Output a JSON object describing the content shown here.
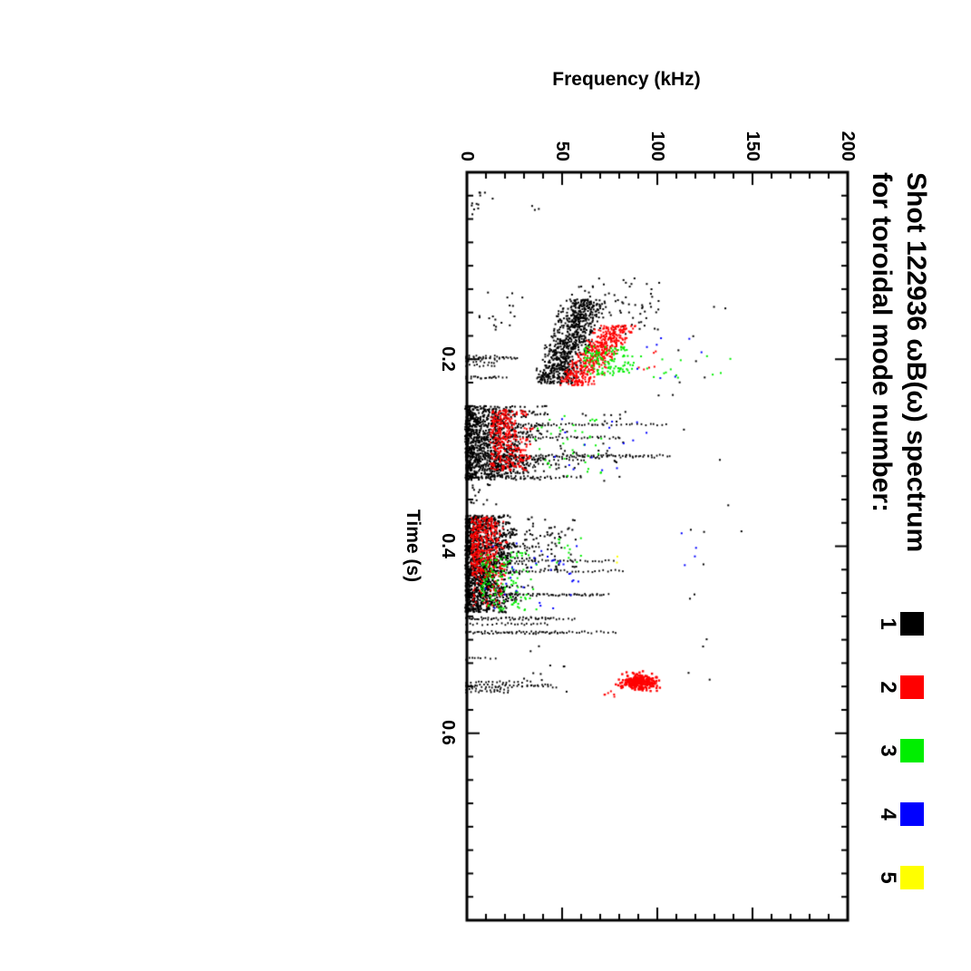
{
  "page": {
    "background": "#ffffff"
  },
  "chart": {
    "title_line1": "Shot 122936 ωB(ω) spectrum",
    "title_line2": "for toroidal mode number:",
    "x_axis": {
      "label": "Time (s)",
      "ticks": [
        "0.2",
        "0.4",
        "0.6"
      ]
    },
    "y_axis": {
      "label": "Frequency (kHz)",
      "ticks": [
        "0",
        "50",
        "100",
        "150",
        "200"
      ]
    },
    "legend": [
      {
        "label": "1",
        "color": "#000000"
      },
      {
        "label": "2",
        "color": "#ff0000"
      },
      {
        "label": "3",
        "color": "#00ee00"
      },
      {
        "label": "4",
        "color": "#0000ff"
      },
      {
        "label": "5",
        "color": "#ffff00"
      }
    ]
  },
  "chart_data": {
    "type": "scatter",
    "title": "Shot 122936 ωB(ω) spectrum for toroidal mode number:",
    "xlabel": "Time (s)",
    "ylabel": "Frequency (kHz)",
    "xlim": [
      0,
      0.8
    ],
    "ylim": [
      0,
      200
    ],
    "x_major": 0.2,
    "x_minor": 0.025,
    "y_major": 50,
    "y_minor": 10,
    "x_tick_labels": [
      "0.2",
      "0.4",
      "0.6"
    ],
    "y_tick_labels": [
      "0",
      "50",
      "100",
      "150",
      "200"
    ],
    "grid": false,
    "legend_position": "top-right of title, color swatches with mode numbers 1-5 beneath",
    "orientation": "landscape plot rotated 90° clockwise on the page (time axis runs downward, frequency axis runs rightward)",
    "series": [
      {
        "name": "toroidal mode n=1",
        "legend_label": "1",
        "color": "#000000",
        "clusters": [
          {
            "style": "dots",
            "t": [
              0.02,
              0.045
            ],
            "f": [
              0,
              14
            ],
            "n": 12
          },
          {
            "style": "dots",
            "t": [
              0.03,
              0.04
            ],
            "f": [
              30,
              40
            ],
            "n": 3
          },
          {
            "style": "chirp",
            "t": [
              0.135,
              0.225
            ],
            "f": [
              30,
              75
            ],
            "fc": [
              63,
              46
            ],
            "spread": 9,
            "n": 750
          },
          {
            "style": "dots",
            "t": [
              0.11,
              0.175
            ],
            "f": [
              55,
              102
            ],
            "n": 80
          },
          {
            "style": "dots",
            "t": [
              0.125,
              0.17
            ],
            "f": [
              5,
              30
            ],
            "n": 18
          },
          {
            "style": "spikes",
            "t": [
              0.193,
              0.222
            ],
            "f": [
              0,
              40
            ],
            "k": 7
          },
          {
            "style": "band",
            "t": [
              0.249,
              0.328
            ],
            "f": [
              0,
              44
            ],
            "n": 1100,
            "bias": 1.6
          },
          {
            "style": "spikes",
            "t": [
              0.252,
              0.325
            ],
            "f": [
              0,
              120
            ],
            "k": 9
          },
          {
            "style": "dots",
            "t": [
              0.252,
              0.33
            ],
            "f": [
              44,
              85
            ],
            "n": 50
          },
          {
            "style": "dots",
            "t": [
              0.332,
              0.36
            ],
            "f": [
              0,
              18
            ],
            "n": 16
          },
          {
            "style": "band",
            "t": [
              0.366,
              0.47
            ],
            "f": [
              0,
              30
            ],
            "n": 1400,
            "bias": 1.5
          },
          {
            "style": "spikes",
            "t": [
              0.4,
              0.5
            ],
            "f": [
              0,
              90
            ],
            "k": 12
          },
          {
            "style": "dots",
            "t": [
              0.368,
              0.425
            ],
            "f": [
              30,
              58
            ],
            "n": 80
          },
          {
            "style": "spikes",
            "t": [
              0.515,
              0.556
            ],
            "f": [
              0,
              50
            ],
            "k": 6
          },
          {
            "style": "dots",
            "t": [
              0.505,
              0.555
            ],
            "f": [
              30,
              55
            ],
            "n": 10
          },
          {
            "style": "dots",
            "t": [
              0.12,
              0.55
            ],
            "f": [
              100,
              150
            ],
            "n": 22
          }
        ]
      },
      {
        "name": "toroidal mode n=2",
        "legend_label": "2",
        "color": "#ff0000",
        "clusters": [
          {
            "style": "chirp",
            "t": [
              0.163,
              0.227
            ],
            "f": [
              46,
              90
            ],
            "fc": [
              80,
              57
            ],
            "spread": 8,
            "n": 480
          },
          {
            "style": "band",
            "t": [
              0.253,
              0.318
            ],
            "f": [
              13,
              37
            ],
            "n": 300,
            "bias": 1.1
          },
          {
            "style": "band",
            "t": [
              0.368,
              0.432
            ],
            "f": [
              3,
              25
            ],
            "n": 330,
            "bias": 1.2
          },
          {
            "style": "dots",
            "t": [
              0.432,
              0.465
            ],
            "f": [
              3,
              20
            ],
            "n": 45
          },
          {
            "style": "blob",
            "t": [
              0.534,
              0.554
            ],
            "f": [
              80,
              102
            ],
            "n": 240
          },
          {
            "style": "dots",
            "t": [
              0.552,
              0.56
            ],
            "f": [
              72,
              78
            ],
            "n": 6
          },
          {
            "style": "dots",
            "t": [
              0.19,
              0.215
            ],
            "f": [
              90,
              100
            ],
            "n": 6
          }
        ]
      },
      {
        "name": "toroidal mode n=3",
        "legend_label": "3",
        "color": "#00ee00",
        "clusters": [
          {
            "style": "band",
            "t": [
              0.185,
              0.216
            ],
            "f": [
              62,
              96
            ],
            "n": 130,
            "bias": 1.0
          },
          {
            "style": "dots",
            "t": [
              0.19,
              0.225
            ],
            "f": [
              96,
              140
            ],
            "n": 12
          },
          {
            "style": "dots",
            "t": [
              0.258,
              0.325
            ],
            "f": [
              35,
              72
            ],
            "n": 38
          },
          {
            "style": "band",
            "t": [
              0.405,
              0.468
            ],
            "f": [
              8,
              42
            ],
            "n": 120,
            "bias": 1.1
          },
          {
            "style": "dots",
            "t": [
              0.388,
              0.42
            ],
            "f": [
              42,
              62
            ],
            "n": 12
          }
        ]
      },
      {
        "name": "toroidal mode n=4",
        "legend_label": "4",
        "color": "#0000ff",
        "clusters": [
          {
            "style": "dots",
            "t": [
              0.17,
              0.22
            ],
            "f": [
              90,
              140
            ],
            "n": 8
          },
          {
            "style": "dots",
            "t": [
              0.262,
              0.318
            ],
            "f": [
              45,
              95
            ],
            "n": 16
          },
          {
            "style": "dots",
            "t": [
              0.395,
              0.468
            ],
            "f": [
              10,
              60
            ],
            "n": 32
          },
          {
            "style": "dots",
            "t": [
              0.385,
              0.43
            ],
            "f": [
              95,
              125
            ],
            "n": 4
          }
        ]
      },
      {
        "name": "toroidal mode n=5",
        "legend_label": "5",
        "color": "#ffff00",
        "clusters": [
          {
            "style": "dots",
            "t": [
              0.41,
              0.417
            ],
            "f": [
              79,
              85
            ],
            "n": 2
          }
        ]
      }
    ]
  }
}
